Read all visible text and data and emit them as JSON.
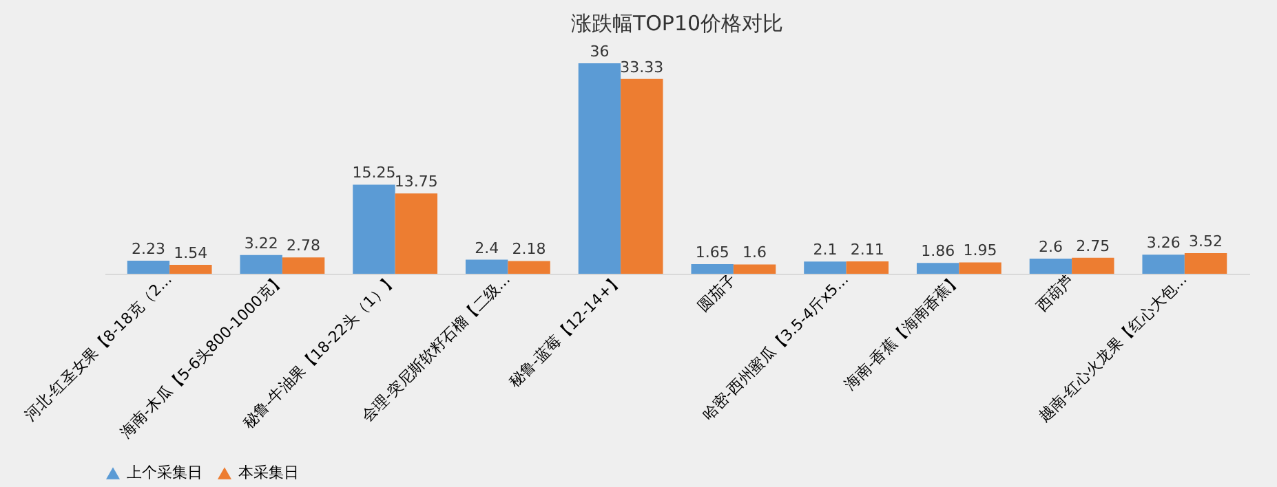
{
  "chart_data": {
    "type": "bar",
    "title": "涨跌幅TOP10价格对比",
    "categories": [
      "河北-红圣女果【8-18克（2...",
      "海南-木瓜【5-6头800-1000克】",
      "秘鲁-牛油果【18-22头（1）】",
      "会理-突尼斯软籽石榴【二级...",
      "秘鲁-蓝莓【12-14+】",
      "圆茄子",
      "哈密-西州蜜瓜【3.5-4斤x5...",
      "海南-香蕉【海南香蕉】",
      "西葫芦",
      "越南-红心火龙果【红心大包..."
    ],
    "series": [
      {
        "name": "上个采集日",
        "color": "#5b9bd5",
        "values": [
          2.23,
          3.22,
          15.25,
          2.4,
          36,
          1.65,
          2.1,
          1.86,
          2.6,
          3.26
        ]
      },
      {
        "name": "本采集日",
        "color": "#ed7d31",
        "values": [
          1.54,
          2.78,
          13.75,
          2.18,
          33.33,
          1.6,
          2.11,
          1.95,
          2.75,
          3.52
        ]
      }
    ],
    "data_labels": true,
    "legend": "bottom",
    "grid": false
  }
}
